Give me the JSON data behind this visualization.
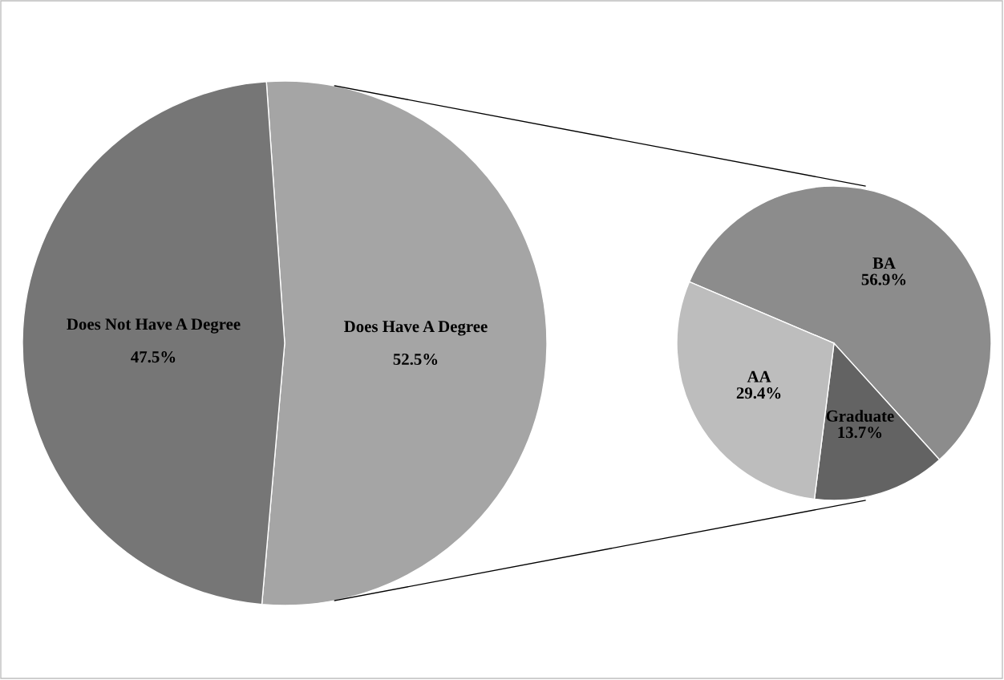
{
  "chart_data": [
    {
      "type": "pie",
      "categories": [
        "Does Have A Degree",
        "Does Not Have A Degree"
      ],
      "values": [
        52.5,
        47.5
      ],
      "colors": [
        "#a5a5a5",
        "#767676"
      ],
      "value_labels": [
        "52.5%",
        "47.5%"
      ]
    },
    {
      "type": "pie",
      "categories": [
        "BA",
        "Graduate",
        "AA"
      ],
      "values": [
        56.9,
        13.7,
        29.4
      ],
      "colors": [
        "#8c8c8c",
        "#636363",
        "#bdbdbd"
      ],
      "value_labels": [
        "56.9%",
        "13.7%",
        "29.4%"
      ]
    }
  ]
}
